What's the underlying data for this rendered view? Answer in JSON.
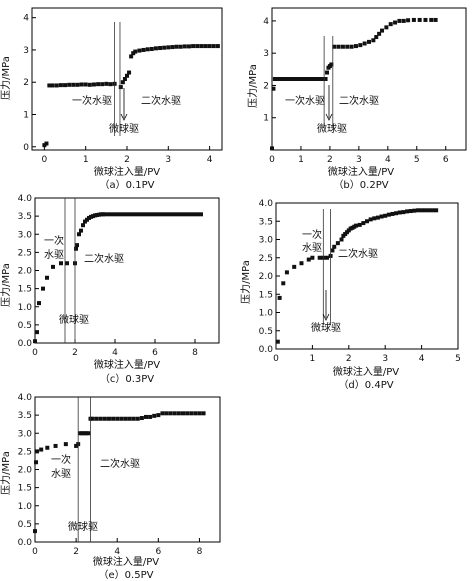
{
  "chart_data": [
    {
      "type": "scatter",
      "caption": "（a）0.1PV",
      "xlabel": "微球注入量/PV",
      "ylabel": "压力/MPa",
      "xlim": [
        -0.3,
        4.3
      ],
      "ylim": [
        -0.1,
        4.3
      ],
      "xticks": [
        0,
        1,
        2,
        3,
        4
      ],
      "yticks": [
        0,
        1,
        2,
        3,
        4
      ],
      "grid": false,
      "series": [
        {
          "x": [
            0.0,
            0.05,
            0.12,
            0.2,
            0.3,
            0.4,
            0.5,
            0.6,
            0.7,
            0.8,
            0.9,
            1.0,
            1.1,
            1.2,
            1.3,
            1.4,
            1.5,
            1.6,
            1.7,
            1.85,
            1.9,
            1.95,
            2.0,
            2.05,
            2.1,
            2.15,
            2.2,
            2.3,
            2.4,
            2.5,
            2.6,
            2.7,
            2.8,
            2.9,
            3.0,
            3.1,
            3.2,
            3.3,
            3.4,
            3.5,
            3.6,
            3.7,
            3.8,
            3.9,
            4.0,
            4.1,
            4.2
          ],
          "y": [
            0.05,
            0.1,
            1.9,
            1.9,
            1.9,
            1.91,
            1.91,
            1.92,
            1.92,
            1.92,
            1.93,
            1.93,
            1.92,
            1.93,
            1.94,
            1.94,
            1.95,
            1.94,
            1.95,
            1.85,
            2.0,
            2.1,
            2.2,
            2.3,
            2.8,
            2.9,
            2.95,
            2.98,
            3.0,
            3.02,
            3.03,
            3.05,
            3.06,
            3.07,
            3.08,
            3.09,
            3.1,
            3.1,
            3.11,
            3.11,
            3.12,
            3.12,
            3.12,
            3.12,
            3.12,
            3.12,
            3.12
          ]
        }
      ],
      "annotations": [
        "一次水驱",
        "二次水驱",
        "微球驱"
      ],
      "phase_lines_x": [
        1.7,
        1.83
      ]
    },
    {
      "type": "scatter",
      "caption": "（b）0.2PV",
      "xlabel": "微球注入量/PV",
      "ylabel": "压力/MPa",
      "xlim": [
        0,
        6.7
      ],
      "ylim": [
        0,
        4.4
      ],
      "xticks": [
        0,
        1,
        2,
        3,
        4,
        5,
        6
      ],
      "yticks": [
        1,
        2,
        3,
        4
      ],
      "grid": false,
      "series": [
        {
          "x": [
            0.0,
            0.05,
            0.1,
            0.2,
            0.3,
            0.4,
            0.5,
            0.6,
            0.7,
            0.8,
            0.9,
            1.0,
            1.1,
            1.2,
            1.3,
            1.4,
            1.5,
            1.6,
            1.7,
            1.8,
            1.85,
            1.9,
            1.95,
            2.0,
            2.05,
            2.15,
            2.3,
            2.45,
            2.6,
            2.75,
            2.9,
            3.05,
            3.2,
            3.35,
            3.5,
            3.6,
            3.7,
            3.8,
            3.95,
            4.1,
            4.25,
            4.4,
            4.55,
            4.7,
            4.9,
            5.1,
            5.3,
            5.5,
            5.65
          ],
          "y": [
            0.05,
            1.9,
            2.2,
            2.2,
            2.2,
            2.2,
            2.2,
            2.2,
            2.2,
            2.2,
            2.2,
            2.2,
            2.2,
            2.2,
            2.2,
            2.2,
            2.2,
            2.2,
            2.2,
            2.2,
            2.2,
            2.4,
            2.55,
            2.6,
            2.65,
            3.2,
            3.2,
            3.2,
            3.2,
            3.2,
            3.22,
            3.25,
            3.3,
            3.35,
            3.4,
            3.5,
            3.6,
            3.7,
            3.8,
            3.9,
            3.95,
            4.0,
            4.0,
            4.02,
            4.03,
            4.03,
            4.03,
            4.03,
            4.03
          ]
        }
      ],
      "annotations": [
        "一次水驱",
        "二次水驱",
        "微球驱"
      ],
      "phase_lines_x": [
        1.8,
        2.1
      ]
    },
    {
      "type": "scatter",
      "caption": "（c）0.3PV",
      "xlabel": "微球注入量/PV",
      "ylabel": "压力/MPa",
      "xlim": [
        0,
        9.2
      ],
      "ylim": [
        0,
        4.0
      ],
      "xticks": [
        0,
        2,
        4,
        6,
        8
      ],
      "yticks": [
        0.0,
        0.5,
        1.0,
        1.5,
        2.0,
        2.5,
        3.0,
        3.5,
        4.0
      ],
      "grid": false,
      "series": [
        {
          "x": [
            0.0,
            0.1,
            0.2,
            0.4,
            0.6,
            0.9,
            1.3,
            1.6,
            2.0,
            2.05,
            2.1,
            2.2,
            2.3,
            2.4,
            2.5,
            2.6,
            2.7,
            2.8,
            2.9,
            3.0,
            3.1,
            3.2,
            3.3,
            3.4,
            3.5,
            3.7,
            3.9,
            4.1,
            4.3,
            4.5,
            4.7,
            4.9,
            5.1,
            5.3,
            5.5,
            5.7,
            5.9,
            6.1,
            6.3,
            6.5,
            6.7,
            6.9,
            7.1,
            7.3,
            7.5,
            7.7,
            7.9,
            8.1,
            8.3
          ],
          "y": [
            0.05,
            0.3,
            1.1,
            1.5,
            1.8,
            2.1,
            2.2,
            2.2,
            2.2,
            2.6,
            2.7,
            3.0,
            3.1,
            3.25,
            3.35,
            3.4,
            3.45,
            3.48,
            3.5,
            3.52,
            3.53,
            3.54,
            3.55,
            3.55,
            3.55,
            3.55,
            3.55,
            3.55,
            3.55,
            3.55,
            3.55,
            3.55,
            3.55,
            3.55,
            3.55,
            3.55,
            3.55,
            3.55,
            3.55,
            3.55,
            3.55,
            3.55,
            3.55,
            3.55,
            3.55,
            3.55,
            3.55,
            3.55,
            3.55
          ]
        }
      ],
      "annotations": [
        "一次",
        "水驱",
        "二次水驱",
        "微球驱"
      ],
      "phase_lines_x": [
        1.5,
        2.0
      ]
    },
    {
      "type": "scatter",
      "caption": "（d）0.4PV",
      "xlabel": "微球注入量/PV",
      "ylabel": "压力/MPa",
      "xlim": [
        0,
        5.0
      ],
      "ylim": [
        0,
        4.0
      ],
      "xticks": [
        0,
        1,
        2,
        3,
        4,
        5
      ],
      "yticks": [
        0.0,
        0.5,
        1.0,
        1.5,
        2.0,
        2.5,
        3.0,
        3.5,
        4.0
      ],
      "grid": false,
      "series": [
        {
          "x": [
            0.05,
            0.1,
            0.2,
            0.3,
            0.5,
            0.7,
            0.9,
            1.0,
            1.2,
            1.3,
            1.4,
            1.5,
            1.55,
            1.6,
            1.7,
            1.8,
            1.85,
            1.9,
            1.95,
            2.0,
            2.05,
            2.1,
            2.15,
            2.2,
            2.3,
            2.4,
            2.5,
            2.6,
            2.7,
            2.8,
            2.9,
            3.0,
            3.1,
            3.2,
            3.3,
            3.4,
            3.5,
            3.6,
            3.7,
            3.8,
            3.9,
            4.0,
            4.1,
            4.2,
            4.3,
            4.4
          ],
          "y": [
            0.2,
            1.4,
            1.8,
            2.1,
            2.25,
            2.35,
            2.45,
            2.5,
            2.5,
            2.5,
            2.5,
            2.55,
            2.7,
            2.8,
            2.9,
            3.0,
            3.1,
            3.15,
            3.2,
            3.25,
            3.3,
            3.32,
            3.35,
            3.38,
            3.4,
            3.45,
            3.5,
            3.55,
            3.58,
            3.6,
            3.63,
            3.65,
            3.68,
            3.7,
            3.72,
            3.74,
            3.75,
            3.77,
            3.78,
            3.79,
            3.8,
            3.8,
            3.8,
            3.8,
            3.8,
            3.8
          ]
        }
      ],
      "annotations": [
        "一次",
        "水驱",
        "二次水驱",
        "微球驱"
      ],
      "phase_lines_x": [
        1.3,
        1.5
      ]
    },
    {
      "type": "scatter",
      "caption": "（e）0.5PV",
      "xlabel": "微球注入量/PV",
      "ylabel": "压力/MPa",
      "xlim": [
        0,
        9.0
      ],
      "ylim": [
        0,
        4.0
      ],
      "xticks": [
        0,
        2,
        4,
        6,
        8
      ],
      "yticks": [
        0.0,
        0.5,
        1.0,
        1.5,
        2.0,
        2.5,
        3.0,
        3.5,
        4.0
      ],
      "grid": false,
      "series": [
        {
          "x": [
            0.0,
            0.05,
            0.1,
            0.3,
            0.6,
            1.0,
            1.5,
            2.0,
            2.1,
            2.2,
            2.3,
            2.4,
            2.5,
            2.6,
            2.7,
            2.8,
            3.0,
            3.2,
            3.4,
            3.6,
            3.8,
            4.0,
            4.2,
            4.4,
            4.6,
            4.8,
            5.0,
            5.2,
            5.4,
            5.6,
            5.8,
            6.0,
            6.2,
            6.4,
            6.6,
            6.8,
            7.0,
            7.2,
            7.4,
            7.6,
            7.8,
            8.0,
            8.2
          ],
          "y": [
            0.3,
            2.2,
            2.5,
            2.55,
            2.6,
            2.65,
            2.7,
            2.65,
            2.7,
            3.0,
            3.0,
            3.0,
            3.0,
            3.0,
            3.4,
            3.4,
            3.4,
            3.4,
            3.4,
            3.4,
            3.4,
            3.4,
            3.4,
            3.4,
            3.4,
            3.4,
            3.4,
            3.42,
            3.45,
            3.45,
            3.48,
            3.5,
            3.55,
            3.55,
            3.55,
            3.55,
            3.55,
            3.55,
            3.55,
            3.55,
            3.55,
            3.55,
            3.55
          ]
        }
      ],
      "annotations": [
        "一次",
        "水驱",
        "二次水驱",
        "微球驱"
      ],
      "phase_lines_x": [
        2.1,
        2.7
      ]
    }
  ]
}
